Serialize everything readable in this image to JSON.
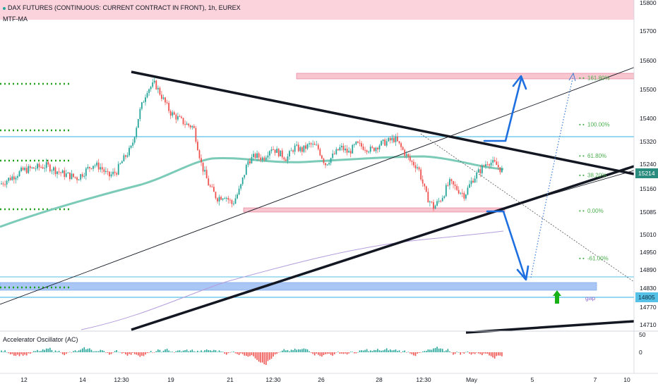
{
  "header": {
    "title": "DAX FUTURES (CONTINUOUS: CURRENT CONTRACT IN FRONT), 1h, EUREX",
    "indicator": "MTF-MA"
  },
  "oscillator": {
    "title": "Accelerator Oscillator (AC)",
    "ticks": [
      "50",
      "0"
    ]
  },
  "colors": {
    "bull": "#26a69a",
    "bear": "#ef5350",
    "fib": "#4caf50",
    "ma": "#7ccbb8",
    "accent_blue": "#2962ff",
    "level_blue": "#56c1e6",
    "zone_red": "#f8bbc8",
    "zone_blue": "#90b6f2"
  },
  "chart_data": {
    "type": "candlestick",
    "title": "DAX FUTURES (CONTINUOUS: CURRENT CONTRACT IN FRONT), 1h, EUREX",
    "y_ticks": [
      "15800",
      "15700",
      "15600",
      "15500",
      "15400",
      "15320",
      "15240",
      "15160",
      "15085",
      "15010",
      "14950",
      "14890",
      "14830",
      "14770",
      "14710"
    ],
    "x_ticks": [
      "12",
      "14",
      "12:30",
      "19",
      "21",
      "12:30",
      "26",
      "28",
      "12:30",
      "May",
      "5",
      "7",
      "10"
    ],
    "price_labels": {
      "last": "15214",
      "level": "14805"
    },
    "fib_levels": [
      {
        "label": "161.80%",
        "price": 15540
      },
      {
        "label": "100.00%",
        "price": 15380
      },
      {
        "label": "61.80%",
        "price": 15270
      },
      {
        "label": "38.20%",
        "price": 15205
      },
      {
        "label": "0.00%",
        "price": 15090
      },
      {
        "label": "-61.00%",
        "price": 14930
      }
    ],
    "annotations": [
      "gap"
    ],
    "price_path": [
      [
        0,
        15175
      ],
      [
        3,
        15220
      ],
      [
        6,
        15235
      ],
      [
        8,
        15210
      ],
      [
        10,
        15195
      ],
      [
        12,
        15240
      ],
      [
        13,
        15230
      ],
      [
        14,
        15200
      ],
      [
        15,
        15215
      ],
      [
        16,
        15260
      ],
      [
        17,
        15300
      ],
      [
        18,
        15420
      ],
      [
        19,
        15500
      ],
      [
        20,
        15520
      ],
      [
        21,
        15470
      ],
      [
        22,
        15420
      ],
      [
        23,
        15400
      ],
      [
        24,
        15380
      ],
      [
        25,
        15370
      ],
      [
        26,
        15240
      ],
      [
        27,
        15170
      ],
      [
        28,
        15130
      ],
      [
        29,
        15140
      ],
      [
        30,
        15110
      ],
      [
        31,
        15160
      ],
      [
        32,
        15250
      ],
      [
        33,
        15270
      ],
      [
        34,
        15260
      ],
      [
        35,
        15300
      ],
      [
        36,
        15280
      ],
      [
        37,
        15260
      ],
      [
        38,
        15300
      ],
      [
        39,
        15290
      ],
      [
        40,
        15310
      ],
      [
        41,
        15300
      ],
      [
        42,
        15240
      ],
      [
        43,
        15270
      ],
      [
        44,
        15300
      ],
      [
        45,
        15280
      ],
      [
        46,
        15310
      ],
      [
        47,
        15300
      ],
      [
        48,
        15290
      ],
      [
        49,
        15310
      ],
      [
        50,
        15320
      ],
      [
        51,
        15330
      ],
      [
        52,
        15290
      ],
      [
        53,
        15250
      ],
      [
        54,
        15230
      ],
      [
        55,
        15140
      ],
      [
        56,
        15100
      ],
      [
        57,
        15130
      ],
      [
        58,
        15180
      ],
      [
        59,
        15160
      ],
      [
        60,
        15140
      ],
      [
        61,
        15190
      ],
      [
        62,
        15220
      ],
      [
        63,
        15250
      ],
      [
        64,
        15240
      ],
      [
        65,
        15214
      ]
    ]
  }
}
